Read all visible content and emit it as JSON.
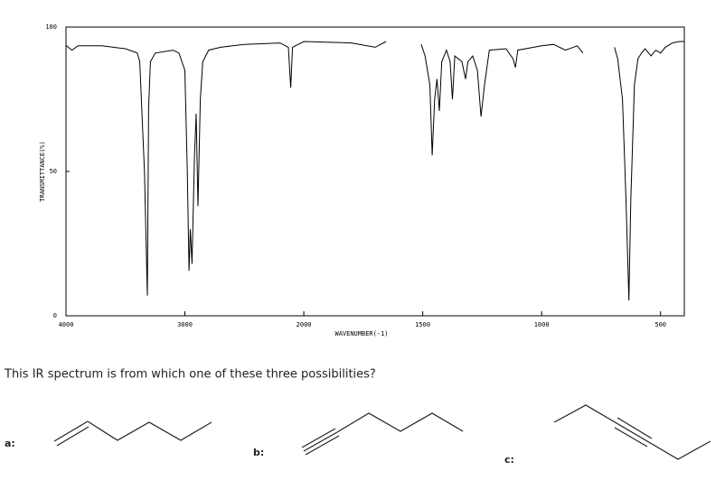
{
  "chart_data": {
    "type": "line",
    "x_label": "WAVENUMBER(-1)",
    "y_label": "TRANSMITTANCE(%)",
    "xlim": [
      4000,
      400
    ],
    "x_scale_change": 2000,
    "xticks": [
      4000,
      3000,
      2000,
      1500,
      1000,
      500
    ],
    "ylim": [
      0,
      100
    ],
    "yticks": [
      0,
      50,
      100
    ],
    "series": [
      {
        "color": "#000000",
        "x": [
          4000,
          3950,
          3900,
          3700,
          3600,
          3500,
          3400,
          3380,
          3340,
          3316,
          3305,
          3290,
          3250,
          3100,
          3050,
          3000,
          2980,
          2965,
          2955,
          2940,
          2920,
          2905,
          2890,
          2870,
          2850,
          2800,
          2700,
          2500,
          2200,
          2130,
          2110,
          2095,
          2000,
          1800,
          1700,
          1654,
          1600,
          1506,
          1490,
          1470,
          1460,
          1450,
          1440,
          1430,
          1420,
          1400,
          1385,
          1375,
          1365,
          1350,
          1335,
          1320,
          1310,
          1290,
          1270,
          1255,
          1240,
          1220,
          1150,
          1120,
          1110,
          1100,
          1000,
          950,
          900,
          850,
          826,
          770,
          694,
          680,
          660,
          645,
          633,
          625,
          610,
          595,
          580,
          565,
          550,
          540,
          520,
          500,
          480,
          450,
          420,
          401
        ],
        "values": [
          93.7,
          92,
          93.5,
          93.5,
          93,
          92.5,
          91,
          88,
          50,
          7,
          72,
          88,
          91,
          92,
          91,
          85,
          50,
          15.6,
          30,
          18,
          55,
          70,
          38,
          75,
          88,
          92,
          93,
          94,
          94.5,
          93,
          79,
          93,
          95,
          94.5,
          93,
          95,
          null,
          94,
          90,
          80,
          55.6,
          75,
          82,
          71,
          88,
          92,
          88,
          75,
          90,
          89,
          88,
          82,
          88,
          90,
          85,
          69,
          80,
          92,
          92.5,
          89,
          86,
          92,
          93.5,
          94,
          92,
          93.5,
          91,
          null,
          93,
          89,
          75,
          40,
          5.3,
          40,
          80,
          89,
          91,
          92.5,
          91,
          90,
          92,
          91,
          93,
          94.5,
          95,
          95
        ]
      }
    ]
  },
  "question": "This IR spectrum is from which one of these three possibilities?",
  "options": [
    {
      "label": "a:"
    },
    {
      "label": "b:"
    },
    {
      "label": "c:"
    }
  ]
}
